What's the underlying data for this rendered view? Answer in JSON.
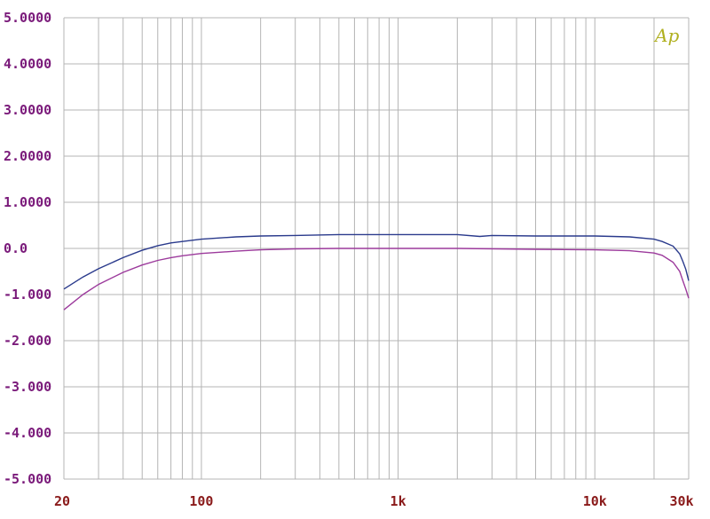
{
  "chart_data": {
    "type": "line",
    "title": "",
    "xlabel": "",
    "ylabel": "",
    "x_scale": "log",
    "xlim": [
      20,
      30000
    ],
    "ylim": [
      -5,
      5
    ],
    "grid": true,
    "x_tick_values": [
      20,
      100,
      1000,
      10000,
      30000
    ],
    "x_tick_labels": [
      "20",
      "100",
      "1k",
      "10k",
      "30k"
    ],
    "y_tick_values": [
      5,
      4,
      3,
      2,
      1,
      0,
      -1,
      -2,
      -3,
      -4,
      -5
    ],
    "y_tick_labels": [
      "5.0000",
      "4.0000",
      "3.0000",
      "2.0000",
      "1.0000",
      "0.0",
      "-1.000",
      "-2.000",
      "-3.000",
      "-4.000",
      "-5.000"
    ],
    "logo_text": "Ap",
    "colors": {
      "series_1": "#2a3a8c",
      "series_2": "#9c3a9c",
      "grid": "#b4b4b4",
      "y_tick_text": "#7a1a7a",
      "x_tick_text": "#8a1a1a",
      "logo": "#b0b020"
    },
    "series": [
      {
        "x": [
          20,
          25,
          30,
          40,
          50,
          60,
          70,
          80,
          100,
          150,
          200,
          300,
          500,
          700,
          1000,
          2000,
          2600,
          3000,
          5000,
          10000,
          15000,
          20000,
          22000,
          25000,
          27000,
          28000,
          29000,
          30000
        ],
        "values": [
          -0.88,
          -0.62,
          -0.44,
          -0.2,
          -0.04,
          0.06,
          0.12,
          0.15,
          0.2,
          0.25,
          0.27,
          0.28,
          0.3,
          0.3,
          0.3,
          0.3,
          0.26,
          0.28,
          0.27,
          0.27,
          0.25,
          0.2,
          0.15,
          0.05,
          -0.12,
          -0.28,
          -0.45,
          -0.7
        ]
      },
      {
        "x": [
          20,
          25,
          30,
          40,
          50,
          60,
          70,
          80,
          100,
          150,
          200,
          300,
          500,
          1000,
          2000,
          5000,
          10000,
          15000,
          20000,
          22000,
          25000,
          27000,
          28000,
          29000,
          30000
        ],
        "values": [
          -1.33,
          -1.0,
          -0.78,
          -0.52,
          -0.36,
          -0.26,
          -0.2,
          -0.16,
          -0.11,
          -0.06,
          -0.03,
          -0.01,
          0.0,
          0.0,
          0.0,
          -0.02,
          -0.03,
          -0.05,
          -0.1,
          -0.15,
          -0.3,
          -0.5,
          -0.7,
          -0.88,
          -1.08
        ]
      }
    ]
  }
}
